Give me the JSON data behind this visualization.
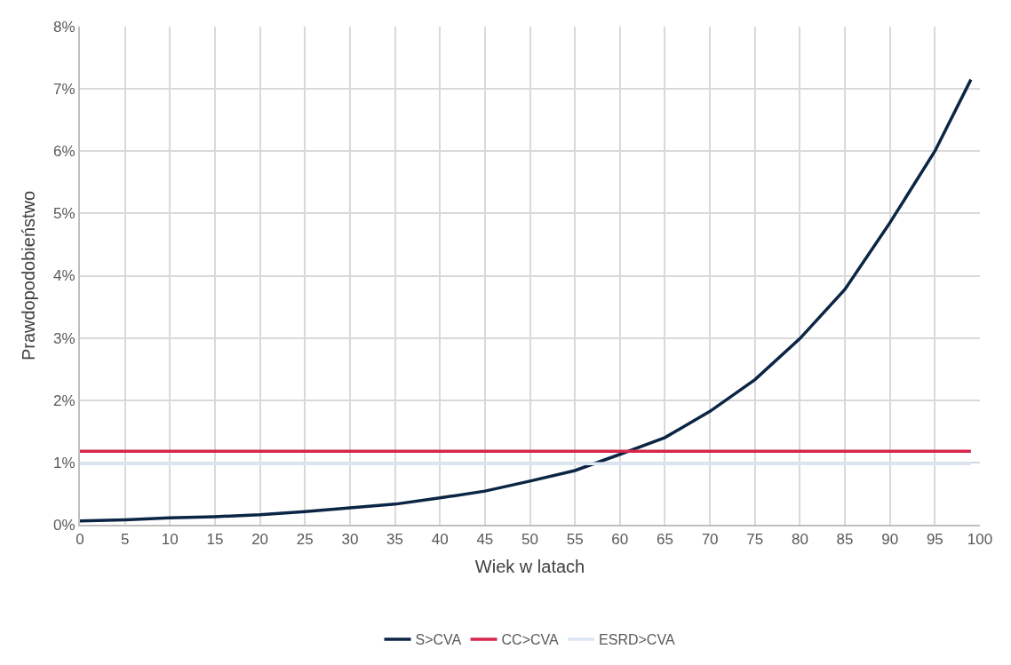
{
  "chart_data": {
    "type": "line",
    "xlabel": "Wiek w latach",
    "ylabel": "Prawdopodobieństwo",
    "x": [
      0,
      5,
      10,
      15,
      20,
      25,
      30,
      35,
      40,
      45,
      50,
      55,
      60,
      65,
      70,
      75,
      80,
      85,
      90,
      95,
      99
    ],
    "series": [
      {
        "name": "S>CVA",
        "color": "#0b2545",
        "values": [
          0.06,
          0.08,
          0.11,
          0.13,
          0.16,
          0.21,
          0.27,
          0.33,
          0.43,
          0.54,
          0.7,
          0.87,
          1.13,
          1.4,
          1.82,
          2.33,
          2.99,
          3.78,
          4.85,
          6.0,
          7.15
        ]
      },
      {
        "name": "CC>CVA",
        "color": "#d6264a",
        "values": [
          1.18,
          1.18,
          1.18,
          1.18,
          1.18,
          1.18,
          1.18,
          1.18,
          1.18,
          1.18,
          1.18,
          1.18,
          1.18,
          1.18,
          1.18,
          1.18,
          1.18,
          1.18,
          1.18,
          1.18,
          1.18
        ]
      },
      {
        "name": "ESRD>CVA",
        "color": "#dce6f2",
        "values": [
          0.98,
          0.98,
          0.98,
          0.98,
          0.98,
          0.98,
          0.98,
          0.98,
          0.98,
          0.98,
          0.98,
          0.98,
          0.98,
          0.98,
          0.98,
          0.98,
          0.98,
          0.98,
          0.98,
          0.98,
          0.98
        ]
      }
    ],
    "xlim": [
      0,
      100
    ],
    "xticks": [
      0,
      5,
      10,
      15,
      20,
      25,
      30,
      35,
      40,
      45,
      50,
      55,
      60,
      65,
      70,
      75,
      80,
      85,
      90,
      95,
      100
    ],
    "ylim": [
      0,
      8
    ],
    "yticks": [
      {
        "value": 0,
        "label": "0%"
      },
      {
        "value": 1,
        "label": "1%"
      },
      {
        "value": 2,
        "label": "2%"
      },
      {
        "value": 3,
        "label": "3%"
      },
      {
        "value": 4,
        "label": "4%"
      },
      {
        "value": 5,
        "label": "5%"
      },
      {
        "value": 6,
        "label": "6%"
      },
      {
        "value": 7,
        "label": "7%"
      },
      {
        "value": 8,
        "label": "8%"
      }
    ],
    "grid": true,
    "legend": "bottom",
    "marker": "none",
    "line_style": "solid"
  }
}
